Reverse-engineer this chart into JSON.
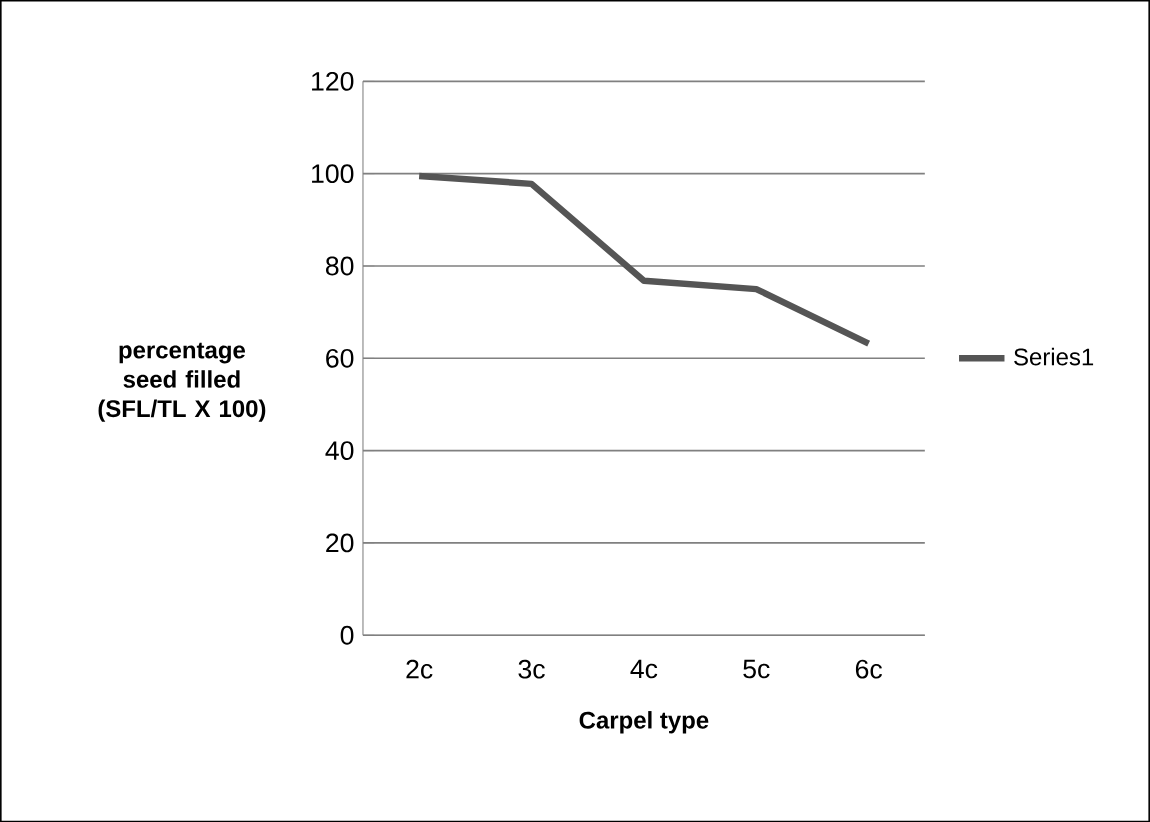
{
  "chart_data": {
    "type": "line",
    "xlabel": "Carpel type",
    "ylabel": "percentage seed filled (SFL/TL X 100)",
    "categories": [
      "2c",
      "3c",
      "4c",
      "5c",
      "6c"
    ],
    "series": [
      {
        "name": "Series1",
        "color": "#555555",
        "values": [
          99.5,
          97.8,
          76.8,
          75,
          63.2
        ]
      }
    ],
    "ylim": [
      0,
      120
    ],
    "yticks": [
      0,
      20,
      40,
      60,
      80,
      100,
      120
    ],
    "grid": "y",
    "legend": "right",
    "marker": "none",
    "line_style": "solid"
  }
}
